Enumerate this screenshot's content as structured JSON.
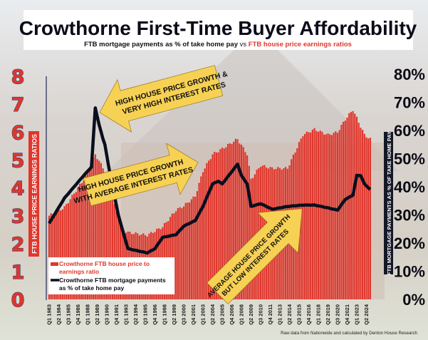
{
  "chart_data": {
    "type": "bar+line",
    "title": "Crowthorne First-Time Buyer Affordability",
    "subtitle_part1": "FTB mortgage payments as % of take home pay",
    "subtitle_vs": " vs ",
    "subtitle_part2": "FTB house price earnings ratios",
    "left_axis": {
      "label": "FTB HOUSE PRICE EARNINGS RATIOS",
      "range": [
        0,
        8
      ],
      "ticks": [
        "0",
        "1",
        "2",
        "3",
        "4",
        "5",
        "6",
        "7",
        "8"
      ]
    },
    "right_axis": {
      "label": "FTB MORTGAGE PAYMENTS AS % OF TAKE HOME PAY",
      "range": [
        0,
        80
      ],
      "ticks": [
        "0%",
        "10%",
        "20%",
        "30%",
        "40%",
        "50%",
        "60%",
        "70%",
        "80%"
      ]
    },
    "x_range": [
      "Q1 1983",
      "Q4 2024"
    ],
    "x_tick_labels": [
      "Q1 1983",
      "Q2 1984",
      "Q3 1985",
      "Q4 1986",
      "Q1 1988",
      "Q2 1989",
      "Q3 1990",
      "Q4 1991",
      "Q1 1993",
      "Q2 1994",
      "Q3 1995",
      "Q4 1996",
      "Q1 1998",
      "Q2 1999",
      "Q3 2000",
      "Q4 2001",
      "Q1 2003",
      "Q2 2004",
      "Q3 2005",
      "Q4 2006",
      "Q1 2008",
      "Q2 2009",
      "Q3 2010",
      "Q4 2011",
      "Q1 2013",
      "Q2 2014",
      "Q3 2015",
      "Q4 2016",
      "Q1 2018",
      "Q2 2019",
      "Q3 2020",
      "Q4 2021",
      "Q1 2023",
      "Q2 2024"
    ],
    "series": [
      {
        "name": "Crowthorne FTB house price to earnings ratio",
        "axis": "left",
        "kind": "bar",
        "color": "#e0362c",
        "points": [
          [
            "Q1 1983",
            3.0
          ],
          [
            "Q1 1985",
            3.3
          ],
          [
            "Q3 1987",
            4.3
          ],
          [
            "Q1 1989",
            5.2
          ],
          [
            "Q2 1990",
            4.6
          ],
          [
            "Q2 1991",
            3.6
          ],
          [
            "Q3 1992",
            2.5
          ],
          [
            "Q2 1993",
            2.4
          ],
          [
            "Q4 1995",
            2.3
          ],
          [
            "Q4 1997",
            2.6
          ],
          [
            "Q3 1999",
            3.2
          ],
          [
            "Q3 2000",
            3.35
          ],
          [
            "Q1 2002",
            3.7
          ],
          [
            "Q1 2003",
            4.6
          ],
          [
            "Q2 2004",
            5.2
          ],
          [
            "Q3 2005",
            5.4
          ],
          [
            "Q3 2007",
            5.75
          ],
          [
            "Q4 2008",
            5.2
          ],
          [
            "Q2 2009",
            4.3
          ],
          [
            "Q3 2010",
            4.8
          ],
          [
            "Q1 2012",
            4.7
          ],
          [
            "Q1 2014",
            4.7
          ],
          [
            "Q1 2016",
            5.9
          ],
          [
            "Q3 2017",
            6.1
          ],
          [
            "Q2 2019",
            5.9
          ],
          [
            "Q3 2020",
            6.0
          ],
          [
            "Q3 2021",
            6.45
          ],
          [
            "Q3 2022",
            6.8
          ],
          [
            "Q3 2023",
            6.2
          ],
          [
            "Q1 2024",
            5.9
          ],
          [
            "Q4 2024",
            5.75
          ]
        ]
      },
      {
        "name": "Crowthorne FTB mortgage payments as % of take home pay",
        "axis": "right",
        "kind": "line",
        "color": "#0a0f1e",
        "points": [
          [
            "Q1 1983",
            27
          ],
          [
            "Q1 1985",
            36
          ],
          [
            "Q3 1987",
            44
          ],
          [
            "Q3 1988",
            47
          ],
          [
            "Q1 1989",
            68
          ],
          [
            "Q3 1989",
            62
          ],
          [
            "Q1 1990",
            57
          ],
          [
            "Q2 1990",
            55
          ],
          [
            "Q4 1990",
            47
          ],
          [
            "Q2 1991",
            40
          ],
          [
            "Q1 1992",
            30
          ],
          [
            "Q3 1992",
            25
          ],
          [
            "Q2 1993",
            18
          ],
          [
            "Q4 1995",
            16.5
          ],
          [
            "Q4 1996",
            18
          ],
          [
            "Q4 1997",
            22
          ],
          [
            "Q3 1999",
            23
          ],
          [
            "Q3 2000",
            26
          ],
          [
            "Q1 2002",
            28
          ],
          [
            "Q1 2003",
            33
          ],
          [
            "Q2 2004",
            41
          ],
          [
            "Q1 2005",
            42
          ],
          [
            "Q3 2005",
            41
          ],
          [
            "Q3 2007",
            48
          ],
          [
            "Q1 2008",
            44
          ],
          [
            "Q4 2008",
            41
          ],
          [
            "Q2 2009",
            33
          ],
          [
            "Q3 2010",
            34
          ],
          [
            "Q1 2012",
            32
          ],
          [
            "Q1 2014",
            33
          ],
          [
            "Q1 2016",
            33.5
          ],
          [
            "Q3 2017",
            33.5
          ],
          [
            "Q2 2019",
            32.5
          ],
          [
            "Q3 2020",
            31.7
          ],
          [
            "Q3 2021",
            35.5
          ],
          [
            "Q3 2022",
            37
          ],
          [
            "Q1 2023",
            44
          ],
          [
            "Q3 2023",
            44
          ],
          [
            "Q1 2024",
            41
          ],
          [
            "Q4 2024",
            39
          ]
        ]
      }
    ],
    "legend": {
      "placement": "bottom-left",
      "entries": [
        "Crowthorne FTB house price to",
        "earnings ratio",
        "Crowthorne FTB mortgage payments",
        "as % of take home pay"
      ]
    },
    "annotations": {
      "arrow1": [
        "HIGH HOUSE PRICE GROWTH &",
        "VERY HIGH INTEREST RATES"
      ],
      "arrow2": [
        "HIGH HOUSE PRICE GROWTH",
        "WITH AVERAGE INTEREST RATES"
      ],
      "arrow3": [
        "AVERAGE HOUSE PRICE GROWTH",
        "BUT LOW INTEREST RATES"
      ]
    },
    "source": "Raw data from Nationwide and calculated by Denton House Research"
  }
}
